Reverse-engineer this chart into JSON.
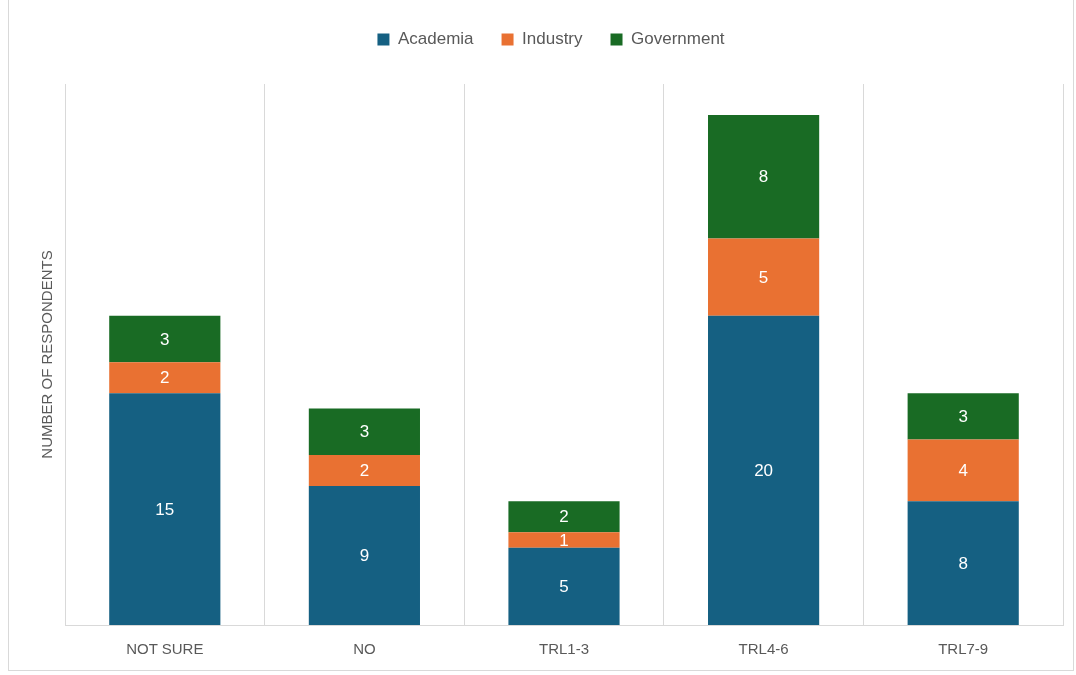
{
  "chart_data": {
    "type": "bar",
    "stacked": true,
    "categories": [
      "NOT SURE",
      "NO",
      "TRL1-3",
      "TRL4-6",
      "TRL7-9"
    ],
    "series": [
      {
        "name": "Academia",
        "color": "#156082",
        "values": [
          15,
          9,
          5,
          20,
          8
        ]
      },
      {
        "name": "Industry",
        "color": "#e97132",
        "values": [
          2,
          2,
          1,
          5,
          4
        ]
      },
      {
        "name": "Government",
        "color": "#196b24",
        "values": [
          3,
          3,
          2,
          8,
          3
        ]
      }
    ],
    "ylabel": "NUMBER OF RESPONDENTS",
    "ylim": [
      0,
      35
    ],
    "tick_labels": "x",
    "grid": "x",
    "legend": "top",
    "data_labels": true
  }
}
